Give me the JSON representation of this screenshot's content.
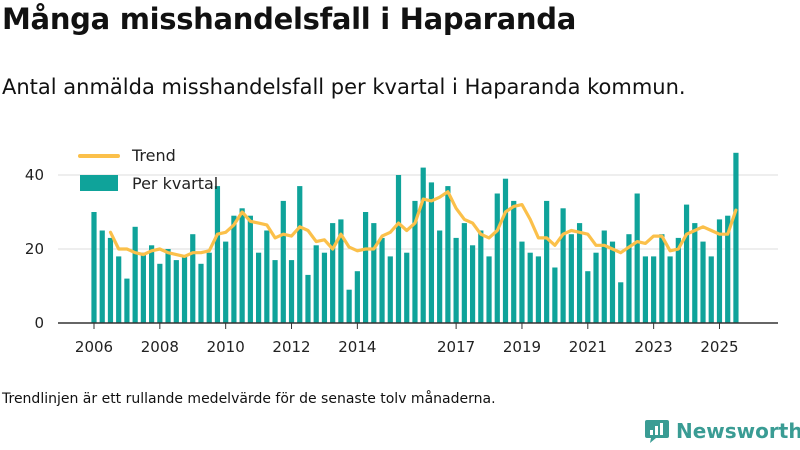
{
  "header": {
    "title": "Många misshandelsfall i Haparanda",
    "subtitle": "Antal anmälda misshandelsfall per kvartal i Haparanda kommun."
  },
  "footer": {
    "note": "Trendlinjen är ett rullande medelvärde för de senaste tolv månaderna.",
    "brand": "Newsworthy"
  },
  "colors": {
    "bar": "#0fa39a",
    "trend": "#fbc04a",
    "grid": "#dddddd",
    "axis": "#333333",
    "brand": "#3a9c94"
  },
  "chart_data": {
    "type": "bar",
    "title": "Många misshandelsfall i Haparanda",
    "subtitle": "Antal anmälda misshandelsfall per kvartal i Haparanda kommun.",
    "xlabel": "",
    "ylabel": "",
    "start_year": 2006,
    "quarters_per_year": 4,
    "ylim": [
      0,
      47
    ],
    "yticks": [
      0,
      20,
      40
    ],
    "xticks": [
      "2006",
      "2008",
      "2010",
      "2012",
      "2014",
      "2017",
      "2019",
      "2021",
      "2023",
      "2025"
    ],
    "xtick_years": [
      2006,
      2008,
      2010,
      2012,
      2014,
      2017,
      2019,
      2021,
      2023,
      2025
    ],
    "grid": true,
    "legend": [
      "Trend",
      "Per kvartal"
    ],
    "legend_position": "top-left",
    "series": [
      {
        "name": "Per kvartal",
        "type": "bar",
        "values": [
          30,
          25,
          23,
          18,
          12,
          26,
          19,
          21,
          16,
          20,
          17,
          18,
          24,
          16,
          19,
          37,
          22,
          29,
          31,
          29,
          19,
          25,
          17,
          33,
          17,
          37,
          13,
          21,
          19,
          27,
          28,
          9,
          14,
          30,
          27,
          23,
          18,
          40,
          19,
          33,
          42,
          38,
          25,
          37,
          23,
          27,
          21,
          25,
          18,
          35,
          39,
          33,
          22,
          19,
          18,
          33,
          15,
          31,
          24,
          27,
          14,
          19,
          25,
          22,
          11,
          24,
          35,
          18,
          18,
          24,
          18,
          23,
          32,
          27,
          22,
          18,
          28,
          29,
          46
        ]
      },
      {
        "name": "Trend",
        "type": "line",
        "values": [
          null,
          null,
          24.5,
          20,
          20,
          19,
          18.5,
          19.5,
          20,
          19,
          18.5,
          18,
          19,
          19,
          19.5,
          24,
          24.5,
          26.5,
          30,
          27.5,
          27,
          26.5,
          23,
          24,
          23.5,
          26,
          25,
          22,
          22.5,
          20,
          24,
          20.5,
          19.5,
          20,
          20,
          23.5,
          24.5,
          27,
          25,
          27,
          33.5,
          33,
          34,
          35.5,
          31,
          28,
          27,
          24,
          23,
          25,
          30,
          31.5,
          32,
          28,
          23,
          23,
          21,
          24,
          25,
          24.5,
          24,
          21,
          21,
          20,
          19,
          20.5,
          22,
          21.5,
          23.5,
          23.5,
          19.5,
          20,
          24,
          25,
          26,
          25,
          24,
          24,
          30.5
        ]
      }
    ]
  }
}
